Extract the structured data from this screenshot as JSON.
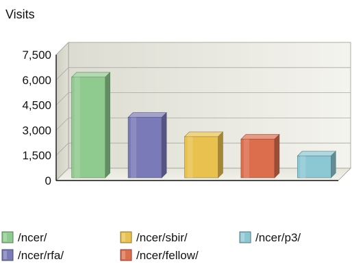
{
  "chart_data": {
    "type": "bar",
    "ylabel": "Visits",
    "categories": [
      "/ncer/",
      "/ncer/rfa/",
      "/ncer/sbir/",
      "/ncer/fellow/",
      "/ncer/p3/"
    ],
    "values": [
      6000,
      3600,
      2450,
      2300,
      1300
    ],
    "colors": [
      "#8fca8f",
      "#7a7ab8",
      "#e9c14e",
      "#dc6e4e",
      "#8cc7d4"
    ],
    "yticks": [
      0,
      1500,
      3000,
      4500,
      6000,
      7500
    ],
    "ytick_labels": [
      "0",
      "1,500",
      "3,000",
      "4,500",
      "6,000",
      "7,500"
    ],
    "ylim": [
      0,
      7500
    ],
    "grid": true,
    "legend_position": "bottom",
    "style": "3d"
  }
}
